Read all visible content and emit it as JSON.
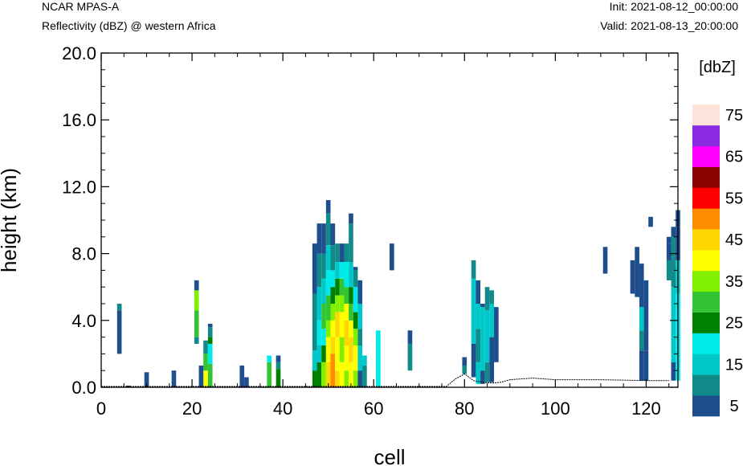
{
  "header": {
    "left_line_1": "NCAR MPAS-A",
    "left_line_2": "Reflectivity (dBZ) @ western Africa",
    "right_line_1": "Init: 2021-08-12_00:00:00",
    "right_line_2": "Valid: 2021-08-13_20:00:00"
  },
  "chart_data": {
    "type": "heatmap",
    "title": "Reflectivity (dBZ) @ western Africa",
    "xlabel": "cell",
    "ylabel": "height (km)",
    "xlim": [
      0,
      127
    ],
    "ylim": [
      0,
      20
    ],
    "x_ticks": [
      0,
      20,
      40,
      60,
      80,
      100,
      120
    ],
    "x_tick_labels": [
      "0",
      "20",
      "40",
      "60",
      "80",
      "100",
      "120"
    ],
    "y_ticks": [
      0,
      4,
      8,
      12,
      16,
      20
    ],
    "y_tick_labels": [
      "0.0",
      "4.0",
      "8.0",
      "12.0",
      "16.0",
      "20.0"
    ],
    "colorbar": {
      "title": "[dbZ]",
      "levels": [
        5,
        10,
        15,
        20,
        25,
        30,
        35,
        40,
        45,
        50,
        55,
        60,
        65,
        70,
        75
      ],
      "labels": [
        "5",
        "15",
        "25",
        "35",
        "45",
        "55",
        "65",
        "75"
      ],
      "colors": [
        "#1f4e8c",
        "#118a8a",
        "#00c8c8",
        "#00eaea",
        "#008000",
        "#33c433",
        "#80f000",
        "#ffff00",
        "#ffd700",
        "#ff8c00",
        "#ff0000",
        "#8b0000",
        "#ff00ff",
        "#8a2be2",
        "#fde4da"
      ]
    },
    "terrain": [
      [
        0,
        0.05
      ],
      [
        76,
        0.05
      ],
      [
        78,
        0.5
      ],
      [
        80,
        0.8
      ],
      [
        82,
        0.4
      ],
      [
        84,
        0.3
      ],
      [
        86,
        0.25
      ],
      [
        88,
        0.3
      ],
      [
        90,
        0.45
      ],
      [
        95,
        0.55
      ],
      [
        100,
        0.45
      ],
      [
        110,
        0.45
      ],
      [
        120,
        0.4
      ],
      [
        125,
        0.4
      ]
    ],
    "columns": [
      {
        "x": 4,
        "z": [
          [
            2.0,
            4.6,
            5
          ],
          [
            4.6,
            5.0,
            10
          ]
        ]
      },
      {
        "x": 6,
        "z": [
          [
            0,
            0.1,
            5
          ]
        ]
      },
      {
        "x": 10,
        "z": [
          [
            0,
            0.9,
            5
          ]
        ]
      },
      {
        "x": 16,
        "z": [
          [
            0,
            1.0,
            5
          ]
        ]
      },
      {
        "x": 21,
        "z": [
          [
            2.6,
            3.0,
            10
          ],
          [
            3.0,
            4.6,
            30
          ],
          [
            4.6,
            5.8,
            35
          ],
          [
            5.8,
            6.4,
            5
          ]
        ]
      },
      {
        "x": 23,
        "z": [
          [
            0,
            1.0,
            40
          ],
          [
            1.0,
            2.0,
            30
          ],
          [
            2.0,
            2.8,
            10
          ]
        ]
      },
      {
        "x": 24,
        "z": [
          [
            0,
            1.4,
            30
          ],
          [
            1.4,
            2.6,
            20
          ],
          [
            2.6,
            3.0,
            25
          ],
          [
            3.0,
            3.6,
            10
          ],
          [
            3.6,
            3.8,
            5
          ]
        ]
      },
      {
        "x": 22,
        "z": [
          [
            0,
            1.3,
            5
          ]
        ]
      },
      {
        "x": 31,
        "z": [
          [
            0,
            1.3,
            5
          ]
        ]
      },
      {
        "x": 32,
        "z": [
          [
            0,
            0.6,
            5
          ]
        ]
      },
      {
        "x": 37,
        "z": [
          [
            0,
            1.5,
            30
          ],
          [
            1.5,
            1.9,
            20
          ]
        ]
      },
      {
        "x": 39,
        "z": [
          [
            0,
            1.1,
            25
          ],
          [
            1.1,
            1.5,
            10
          ],
          [
            1.5,
            1.9,
            5
          ]
        ]
      },
      {
        "x": 47,
        "z": [
          [
            0,
            1.0,
            25
          ],
          [
            1.0,
            2.2,
            15
          ],
          [
            2.2,
            5.6,
            10
          ],
          [
            5.6,
            8.6,
            5
          ]
        ]
      },
      {
        "x": 48,
        "z": [
          [
            0,
            1.5,
            25
          ],
          [
            1.5,
            2.5,
            15
          ],
          [
            2.5,
            4.0,
            20
          ],
          [
            4.0,
            6.0,
            15
          ],
          [
            6.0,
            8.0,
            10
          ],
          [
            8.0,
            9.8,
            5
          ]
        ]
      },
      {
        "x": 49,
        "z": [
          [
            0,
            1.5,
            35
          ],
          [
            1.5,
            2.5,
            25
          ],
          [
            2.5,
            3.5,
            20
          ],
          [
            3.5,
            5.0,
            30
          ],
          [
            5.0,
            6.5,
            15
          ],
          [
            6.5,
            8.0,
            10
          ],
          [
            8.0,
            9.8,
            5
          ]
        ]
      },
      {
        "x": 50,
        "z": [
          [
            0,
            1.5,
            45
          ],
          [
            1.5,
            3.0,
            40
          ],
          [
            3.0,
            4.0,
            35
          ],
          [
            4.0,
            5.5,
            30
          ],
          [
            5.5,
            7.0,
            20
          ],
          [
            7.0,
            8.5,
            15
          ],
          [
            8.5,
            10.4,
            10
          ],
          [
            10.4,
            11.2,
            5
          ]
        ]
      },
      {
        "x": 51,
        "z": [
          [
            0,
            2.0,
            50
          ],
          [
            2.0,
            3.0,
            45
          ],
          [
            3.0,
            4.0,
            40
          ],
          [
            4.0,
            5.0,
            35
          ],
          [
            5.0,
            6.0,
            25
          ],
          [
            6.0,
            7.0,
            20
          ],
          [
            7.0,
            8.5,
            10
          ],
          [
            8.5,
            9.8,
            5
          ]
        ]
      },
      {
        "x": 52,
        "z": [
          [
            0,
            1.0,
            45
          ],
          [
            1.0,
            3.0,
            40
          ],
          [
            3.0,
            4.5,
            45
          ],
          [
            4.5,
            5.5,
            35
          ],
          [
            5.5,
            6.5,
            25
          ],
          [
            6.5,
            7.5,
            15
          ],
          [
            7.5,
            8.6,
            10
          ]
        ]
      },
      {
        "x": 53,
        "z": [
          [
            0,
            1.5,
            40
          ],
          [
            1.5,
            3.0,
            35
          ],
          [
            3.0,
            4.5,
            40
          ],
          [
            4.5,
            5.5,
            35
          ],
          [
            5.5,
            6.5,
            30
          ],
          [
            6.5,
            7.5,
            20
          ],
          [
            7.5,
            8.6,
            5
          ]
        ]
      },
      {
        "x": 54,
        "z": [
          [
            0,
            1.0,
            35
          ],
          [
            1.0,
            2.5,
            40
          ],
          [
            2.5,
            4.0,
            45
          ],
          [
            4.0,
            5.0,
            40
          ],
          [
            5.0,
            6.0,
            30
          ],
          [
            6.0,
            7.5,
            20
          ],
          [
            7.5,
            8.6,
            10
          ]
        ]
      },
      {
        "x": 55,
        "z": [
          [
            0,
            1.5,
            40
          ],
          [
            1.5,
            3.0,
            45
          ],
          [
            3.0,
            4.0,
            40
          ],
          [
            4.0,
            5.0,
            30
          ],
          [
            5.0,
            6.0,
            25
          ],
          [
            6.0,
            7.5,
            15
          ],
          [
            7.5,
            9.8,
            10
          ],
          [
            9.8,
            10.4,
            5
          ]
        ]
      },
      {
        "x": 56,
        "z": [
          [
            0,
            1.0,
            35
          ],
          [
            1.0,
            2.5,
            40
          ],
          [
            2.5,
            3.5,
            35
          ],
          [
            3.5,
            4.5,
            25
          ],
          [
            4.5,
            6.0,
            20
          ],
          [
            6.0,
            7.0,
            10
          ],
          [
            7.0,
            7.2,
            5
          ]
        ]
      },
      {
        "x": 57,
        "z": [
          [
            0,
            1.0,
            5
          ],
          [
            1.0,
            2.5,
            15
          ],
          [
            2.5,
            3.5,
            10
          ],
          [
            3.5,
            5.0,
            15
          ],
          [
            5.0,
            6.4,
            5
          ]
        ]
      },
      {
        "x": 58,
        "z": [
          [
            0,
            1.3,
            10
          ],
          [
            1.3,
            1.9,
            15
          ]
        ]
      },
      {
        "x": 61,
        "z": [
          [
            0,
            3.4,
            20
          ]
        ]
      },
      {
        "x": 64,
        "z": [
          [
            7.0,
            8.6,
            5
          ]
        ]
      },
      {
        "x": 68,
        "z": [
          [
            1.0,
            2.6,
            10
          ],
          [
            2.6,
            3.4,
            5
          ]
        ]
      },
      {
        "x": 80,
        "z": [
          [
            0.8,
            1.3,
            10
          ],
          [
            1.3,
            1.8,
            5
          ]
        ]
      },
      {
        "x": 82,
        "z": [
          [
            0.6,
            2.6,
            5
          ],
          [
            2.6,
            6.5,
            15
          ],
          [
            6.5,
            7.6,
            10
          ]
        ]
      },
      {
        "x": 83,
        "z": [
          [
            0.2,
            1.5,
            15
          ],
          [
            1.5,
            3.5,
            10
          ],
          [
            3.5,
            5.0,
            15
          ],
          [
            5.0,
            6.4,
            5
          ]
        ]
      },
      {
        "x": 84,
        "z": [
          [
            0.2,
            1.0,
            5
          ],
          [
            1.0,
            4.8,
            15
          ],
          [
            4.8,
            5.0,
            5
          ]
        ]
      },
      {
        "x": 85,
        "z": [
          [
            0.3,
            1.5,
            10
          ],
          [
            1.5,
            4.6,
            15
          ],
          [
            4.6,
            6.0,
            10
          ]
        ]
      },
      {
        "x": 86,
        "z": [
          [
            0.3,
            3.0,
            5
          ],
          [
            3.0,
            5.0,
            15
          ],
          [
            5.0,
            5.8,
            10
          ]
        ]
      },
      {
        "x": 87,
        "z": [
          [
            1.5,
            4.8,
            5
          ]
        ]
      },
      {
        "x": 111,
        "z": [
          [
            6.8,
            8.4,
            5
          ]
        ]
      },
      {
        "x": 117,
        "z": [
          [
            5.6,
            7.6,
            5
          ]
        ]
      },
      {
        "x": 118,
        "z": [
          [
            5.4,
            8.4,
            5
          ]
        ]
      },
      {
        "x": 119,
        "z": [
          [
            0.4,
            2.2,
            5
          ],
          [
            2.2,
            3.4,
            10
          ],
          [
            3.4,
            4.8,
            15
          ],
          [
            4.8,
            7.4,
            5
          ]
        ]
      },
      {
        "x": 120,
        "z": [
          [
            0.4,
            2.2,
            5
          ],
          [
            2.2,
            6.4,
            5
          ]
        ]
      },
      {
        "x": 121,
        "z": [
          [
            9.6,
            10.2,
            5
          ]
        ]
      },
      {
        "x": 125,
        "z": [
          [
            6.4,
            7.6,
            10
          ],
          [
            7.6,
            8.6,
            5
          ],
          [
            8.6,
            9.0,
            5
          ]
        ]
      },
      {
        "x": 126,
        "z": [
          [
            0.4,
            1.5,
            5
          ],
          [
            1.5,
            4.0,
            15
          ],
          [
            4.0,
            6.0,
            15
          ],
          [
            6.0,
            7.8,
            10
          ],
          [
            7.8,
            9.0,
            10
          ],
          [
            9.0,
            9.6,
            5
          ]
        ]
      },
      {
        "x": 127,
        "z": [
          [
            0.4,
            5.6,
            20
          ],
          [
            5.6,
            7.6,
            15
          ],
          [
            7.6,
            9.6,
            5
          ],
          [
            9.6,
            10.6,
            5
          ]
        ]
      }
    ]
  }
}
